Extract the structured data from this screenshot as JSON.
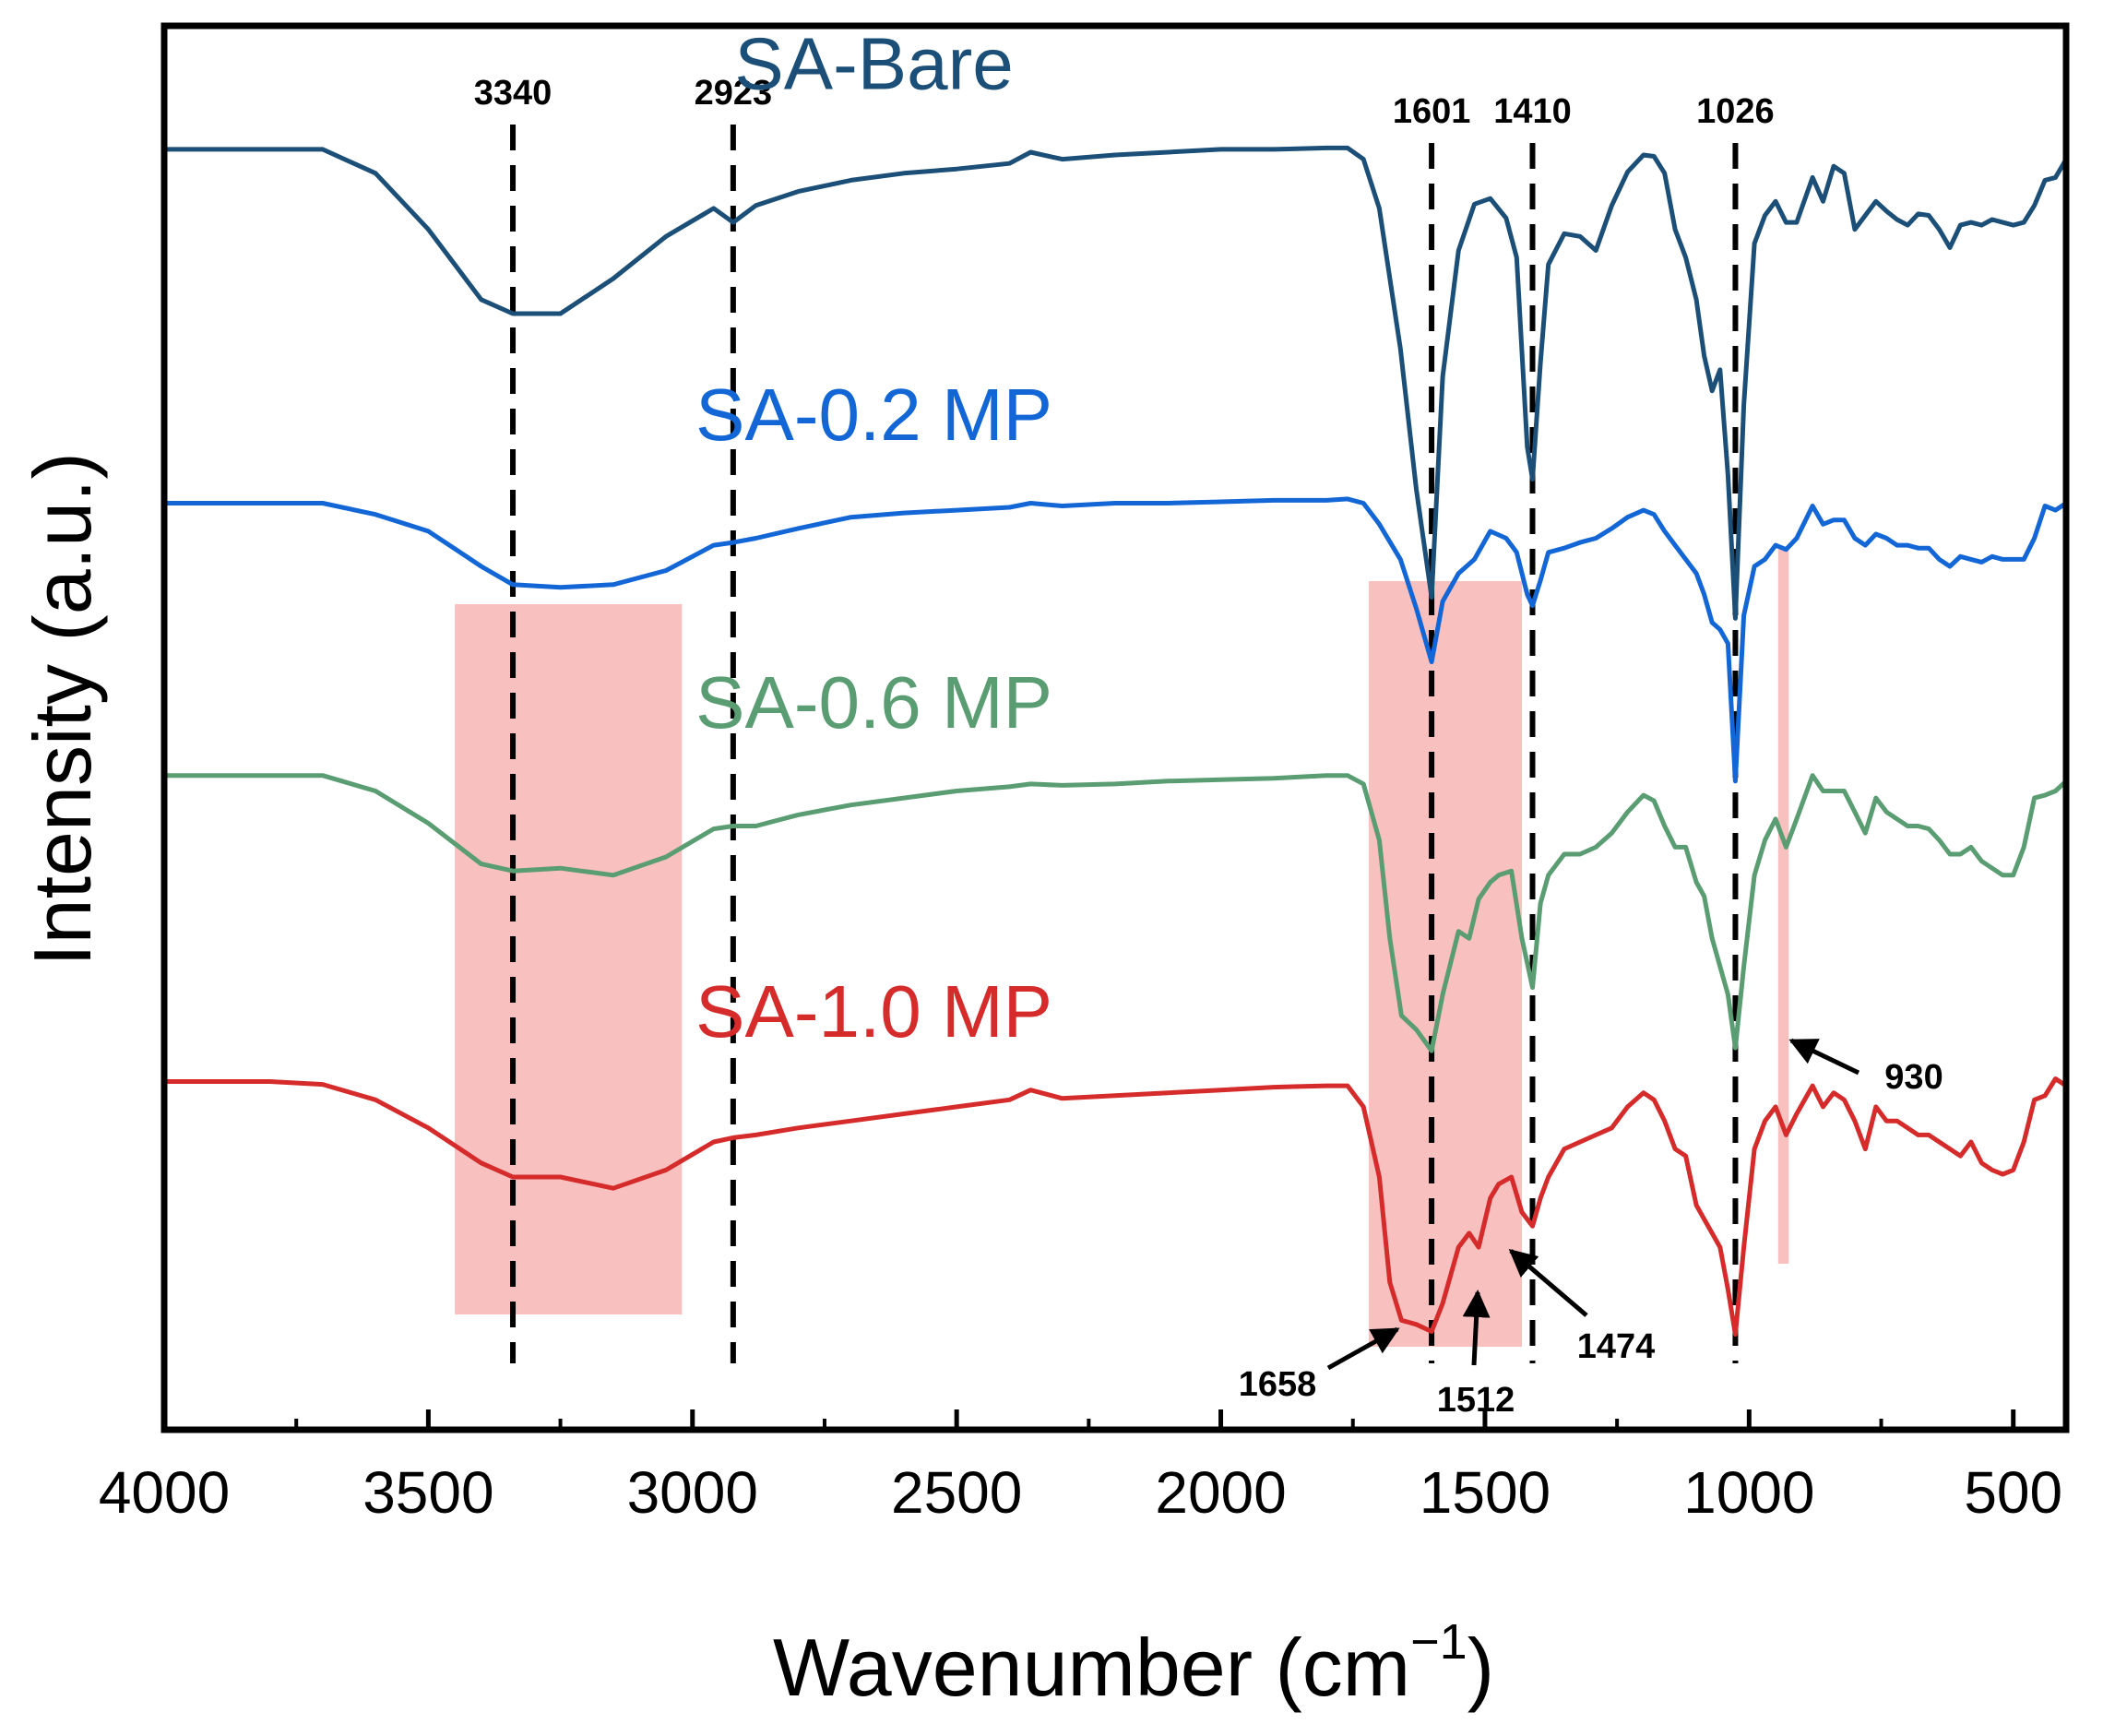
{
  "chart_data": {
    "type": "line",
    "title": "",
    "xlabel_main": "Wavenumber (cm",
    "xlabel_sup": "−1",
    "xlabel_close": ")",
    "ylabel": "Intensity (a.u.)",
    "xlim": [
      4000,
      400
    ],
    "ylim": [
      0,
      10
    ],
    "x_ticks": [
      4000,
      3500,
      3000,
      2500,
      2000,
      1500,
      1000,
      500
    ],
    "x_tick_labels": [
      "4000",
      "3500",
      "3000",
      "2500",
      "2000",
      "1500",
      "1000",
      "500"
    ],
    "y_ticks_shown": false,
    "reference_lines": [
      {
        "x": 3340,
        "label": "3340"
      },
      {
        "x": 2923,
        "label": "2923"
      },
      {
        "x": 1601,
        "label": "1601"
      },
      {
        "x": 1410,
        "label": "1410"
      },
      {
        "x": 1026,
        "label": "1026"
      }
    ],
    "highlight_regions": [
      {
        "x_from": 3450,
        "x_to": 3020,
        "color": "#f6a8a8"
      },
      {
        "x_from": 1720,
        "x_to": 1430,
        "color": "#f6a8a8"
      },
      {
        "x_from": 945,
        "x_to": 925,
        "color": "#f6a8a8"
      }
    ],
    "annotations": [
      {
        "label": "1658",
        "x": 1658,
        "series": "SA-1.0 MP"
      },
      {
        "label": "1512",
        "x": 1512,
        "series": "SA-1.0 MP"
      },
      {
        "label": "1474",
        "x": 1474,
        "series": "SA-1.0 MP"
      },
      {
        "label": "930",
        "x": 930,
        "series": "SA-0.6 MP"
      }
    ],
    "series": [
      {
        "name": "SA-Bare",
        "color": "#1c4f78",
        "x": [
          4000,
          3800,
          3700,
          3600,
          3500,
          3400,
          3340,
          3250,
          3150,
          3050,
          2960,
          2923,
          2880,
          2800,
          2700,
          2600,
          2500,
          2400,
          2360,
          2300,
          2200,
          2100,
          2000,
          1900,
          1800,
          1760,
          1730,
          1700,
          1660,
          1630,
          1601,
          1580,
          1550,
          1520,
          1490,
          1460,
          1440,
          1420,
          1410,
          1395,
          1380,
          1350,
          1320,
          1290,
          1260,
          1230,
          1200,
          1180,
          1160,
          1140,
          1120,
          1100,
          1085,
          1070,
          1055,
          1040,
          1026,
          1010,
          990,
          970,
          950,
          930,
          910,
          880,
          860,
          840,
          820,
          800,
          780,
          760,
          740,
          720,
          700,
          680,
          660,
          640,
          620,
          600,
          580,
          560,
          540,
          520,
          500,
          480,
          460,
          440,
          420,
          400
        ],
        "y": [
          9.12,
          9.12,
          9.12,
          8.95,
          8.55,
          8.05,
          7.95,
          7.95,
          8.2,
          8.5,
          8.7,
          8.6,
          8.72,
          8.82,
          8.9,
          8.95,
          8.98,
          9.02,
          9.1,
          9.05,
          9.08,
          9.1,
          9.12,
          9.12,
          9.13,
          9.13,
          9.05,
          8.7,
          7.7,
          6.7,
          5.93,
          7.5,
          8.4,
          8.73,
          8.77,
          8.63,
          8.35,
          7.0,
          6.77,
          7.6,
          8.3,
          8.52,
          8.5,
          8.4,
          8.72,
          8.96,
          9.08,
          9.07,
          8.95,
          8.55,
          8.35,
          8.05,
          7.65,
          7.4,
          7.55,
          6.8,
          5.78,
          7.3,
          8.45,
          8.65,
          8.75,
          8.6,
          8.6,
          8.92,
          8.75,
          9.0,
          8.95,
          8.55,
          8.65,
          8.75,
          8.68,
          8.62,
          8.58,
          8.66,
          8.65,
          8.55,
          8.42,
          8.58,
          8.6,
          8.58,
          8.62,
          8.6,
          8.58,
          8.6,
          8.72,
          8.9,
          8.92,
          9.05
        ]
      },
      {
        "name": "SA-0.2 MP",
        "color": "#1366d6",
        "x": [
          4000,
          3800,
          3700,
          3600,
          3500,
          3400,
          3340,
          3250,
          3150,
          3050,
          2960,
          2923,
          2880,
          2800,
          2700,
          2600,
          2500,
          2400,
          2360,
          2300,
          2200,
          2100,
          2000,
          1900,
          1800,
          1760,
          1730,
          1700,
          1660,
          1630,
          1601,
          1580,
          1550,
          1520,
          1490,
          1460,
          1440,
          1420,
          1410,
          1395,
          1380,
          1350,
          1320,
          1290,
          1260,
          1230,
          1200,
          1180,
          1160,
          1140,
          1120,
          1100,
          1085,
          1070,
          1055,
          1040,
          1026,
          1010,
          990,
          970,
          950,
          930,
          910,
          880,
          860,
          840,
          820,
          800,
          780,
          760,
          740,
          720,
          700,
          680,
          660,
          640,
          620,
          600,
          580,
          560,
          540,
          520,
          500,
          480,
          460,
          440,
          420,
          400
        ],
        "y": [
          6.6,
          6.6,
          6.6,
          6.52,
          6.4,
          6.15,
          6.02,
          6.0,
          6.02,
          6.12,
          6.3,
          6.32,
          6.35,
          6.42,
          6.5,
          6.53,
          6.55,
          6.57,
          6.6,
          6.58,
          6.6,
          6.6,
          6.61,
          6.62,
          6.62,
          6.63,
          6.6,
          6.45,
          6.2,
          5.85,
          5.47,
          5.9,
          6.1,
          6.2,
          6.4,
          6.35,
          6.25,
          5.95,
          5.87,
          6.05,
          6.25,
          6.28,
          6.32,
          6.35,
          6.42,
          6.5,
          6.55,
          6.52,
          6.4,
          6.3,
          6.2,
          6.1,
          5.95,
          5.75,
          5.7,
          5.6,
          4.62,
          5.8,
          6.15,
          6.2,
          6.3,
          6.27,
          6.35,
          6.58,
          6.45,
          6.48,
          6.48,
          6.35,
          6.3,
          6.38,
          6.35,
          6.3,
          6.3,
          6.28,
          6.28,
          6.2,
          6.15,
          6.22,
          6.2,
          6.18,
          6.22,
          6.2,
          6.2,
          6.2,
          6.35,
          6.58,
          6.55,
          6.6
        ]
      },
      {
        "name": "SA-0.6 MP",
        "color": "#5a9d72",
        "x": [
          4000,
          3800,
          3700,
          3600,
          3500,
          3400,
          3340,
          3250,
          3150,
          3050,
          2960,
          2923,
          2880,
          2800,
          2700,
          2600,
          2500,
          2400,
          2360,
          2300,
          2200,
          2100,
          2000,
          1900,
          1800,
          1760,
          1730,
          1700,
          1680,
          1658,
          1630,
          1601,
          1580,
          1550,
          1530,
          1512,
          1490,
          1474,
          1450,
          1430,
          1410,
          1395,
          1380,
          1350,
          1320,
          1290,
          1260,
          1230,
          1200,
          1180,
          1160,
          1140,
          1120,
          1100,
          1085,
          1070,
          1055,
          1040,
          1026,
          1010,
          990,
          970,
          950,
          930,
          910,
          880,
          860,
          840,
          820,
          800,
          780,
          760,
          740,
          720,
          700,
          680,
          660,
          640,
          620,
          600,
          580,
          560,
          540,
          520,
          500,
          480,
          460,
          440,
          420,
          400
        ],
        "y": [
          4.66,
          4.66,
          4.66,
          4.55,
          4.32,
          4.03,
          3.98,
          4.0,
          3.95,
          4.08,
          4.28,
          4.3,
          4.3,
          4.38,
          4.45,
          4.5,
          4.55,
          4.58,
          4.6,
          4.59,
          4.6,
          4.62,
          4.63,
          4.64,
          4.66,
          4.66,
          4.6,
          4.2,
          3.5,
          2.95,
          2.85,
          2.7,
          3.1,
          3.55,
          3.5,
          3.78,
          3.9,
          3.95,
          3.98,
          3.5,
          3.15,
          3.75,
          3.95,
          4.1,
          4.1,
          4.15,
          4.25,
          4.4,
          4.52,
          4.48,
          4.3,
          4.15,
          4.15,
          3.9,
          3.8,
          3.5,
          3.3,
          3.1,
          2.72,
          3.3,
          3.95,
          4.2,
          4.35,
          4.15,
          4.35,
          4.66,
          4.55,
          4.55,
          4.55,
          4.4,
          4.25,
          4.5,
          4.4,
          4.35,
          4.3,
          4.3,
          4.28,
          4.2,
          4.1,
          4.1,
          4.15,
          4.05,
          4.0,
          3.95,
          3.95,
          4.15,
          4.5,
          4.52,
          4.55,
          4.62
        ]
      },
      {
        "name": "SA-1.0 MP",
        "color": "#d62b2b",
        "x": [
          4000,
          3800,
          3700,
          3600,
          3500,
          3400,
          3340,
          3250,
          3150,
          3050,
          2960,
          2923,
          2880,
          2800,
          2700,
          2600,
          2500,
          2400,
          2360,
          2300,
          2200,
          2100,
          2000,
          1900,
          1800,
          1760,
          1730,
          1700,
          1680,
          1658,
          1630,
          1601,
          1580,
          1550,
          1530,
          1512,
          1490,
          1474,
          1450,
          1430,
          1410,
          1395,
          1380,
          1350,
          1320,
          1290,
          1260,
          1230,
          1200,
          1180,
          1160,
          1140,
          1120,
          1100,
          1085,
          1070,
          1055,
          1040,
          1026,
          1010,
          990,
          970,
          950,
          930,
          910,
          880,
          860,
          840,
          820,
          800,
          780,
          760,
          740,
          720,
          700,
          680,
          660,
          640,
          620,
          600,
          580,
          560,
          540,
          520,
          500,
          480,
          460,
          440,
          420,
          400
        ],
        "y": [
          2.48,
          2.48,
          2.46,
          2.35,
          2.15,
          1.9,
          1.8,
          1.8,
          1.72,
          1.85,
          2.05,
          2.08,
          2.1,
          2.15,
          2.2,
          2.25,
          2.3,
          2.35,
          2.42,
          2.36,
          2.38,
          2.4,
          2.42,
          2.44,
          2.45,
          2.45,
          2.3,
          1.8,
          1.05,
          0.78,
          0.75,
          0.7,
          0.9,
          1.3,
          1.4,
          1.3,
          1.65,
          1.75,
          1.8,
          1.55,
          1.45,
          1.65,
          1.8,
          2.0,
          2.05,
          2.1,
          2.15,
          2.3,
          2.4,
          2.35,
          2.2,
          2.0,
          1.95,
          1.6,
          1.5,
          1.4,
          1.3,
          1.0,
          0.68,
          1.3,
          2.0,
          2.2,
          2.3,
          2.1,
          2.25,
          2.45,
          2.3,
          2.4,
          2.35,
          2.2,
          2.0,
          2.3,
          2.2,
          2.2,
          2.15,
          2.1,
          2.1,
          2.05,
          2.0,
          1.95,
          2.05,
          1.9,
          1.85,
          1.82,
          1.85,
          2.05,
          2.35,
          2.38,
          2.5,
          2.45
        ]
      }
    ],
    "series_label_positions": [
      {
        "name": "SA-Bare",
        "x": 3250,
        "y": 9.55
      },
      {
        "name": "SA-0.2 MP",
        "x": 3250,
        "y": 7.05
      },
      {
        "name": "SA-0.6 MP",
        "x": 3250,
        "y": 5.0
      },
      {
        "name": "SA-1.0 MP",
        "x": 3250,
        "y": 2.8
      }
    ]
  }
}
